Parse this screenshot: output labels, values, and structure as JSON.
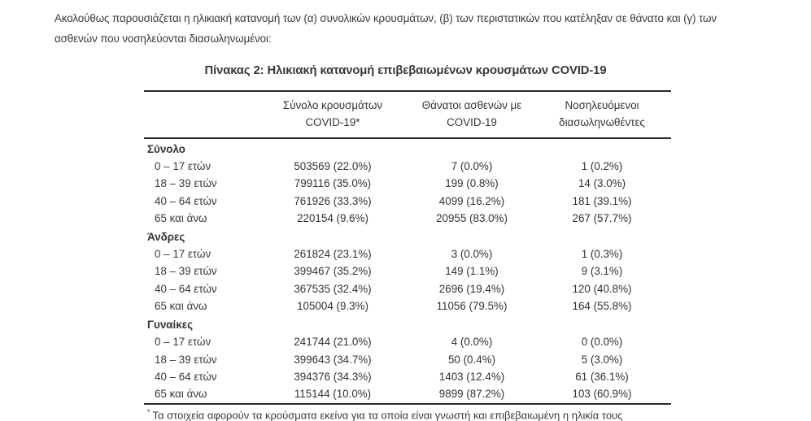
{
  "page": {
    "intro": "Ακολούθως παρουσιάζεται η ηλικιακή κατανομή των (α) συνολικών κρουσμάτων, (β) των περιστατικών που κατέληξαν σε θάνατο και (γ) των ασθενών που νοσηλεύονται διασωληνωμένοι:",
    "table_title": "Πίνακας 2: Ηλικιακή κατανομή επιβεβαιωμένων κρουσμάτων COVID-19",
    "footnote_marker": "*",
    "footnote_text": "Τα στοιχεία αφορούν τα κρούσματα εκείνα για τα οποία είναι γνωστή και επιβεβαιωμένη η ηλικία τους"
  },
  "colors": {
    "text": "#3a3a3a",
    "rule": "#2b2b2b",
    "background": "#ffffff"
  },
  "table": {
    "headers": [
      {
        "line1": "",
        "line2": ""
      },
      {
        "line1": "Σύνολο κρουσμάτων",
        "line2": "COVID-19*"
      },
      {
        "line1": "Θάνατοι ασθενών με",
        "line2": "COVID-19"
      },
      {
        "line1": "Νοσηλευόμενοι",
        "line2": "διασωληνωθέντες"
      }
    ],
    "sections": [
      {
        "label": "Σύνολο",
        "rows": [
          {
            "age": "0 – 17 ετών",
            "cases": "503569 (22.0%)",
            "deaths": "7 (0.0%)",
            "intubated": "1 (0.2%)"
          },
          {
            "age": "18 – 39 ετών",
            "cases": "799116 (35.0%)",
            "deaths": "199 (0.8%)",
            "intubated": "14 (3.0%)"
          },
          {
            "age": "40 – 64 ετών",
            "cases": "761926 (33.3%)",
            "deaths": "4099 (16.2%)",
            "intubated": "181 (39.1%)"
          },
          {
            "age": "65 και άνω",
            "cases": "220154 (9.6%)",
            "deaths": "20955 (83.0%)",
            "intubated": "267 (57.7%)"
          }
        ]
      },
      {
        "label": "Άνδρες",
        "rows": [
          {
            "age": "0 – 17 ετών",
            "cases": "261824 (23.1%)",
            "deaths": "3 (0.0%)",
            "intubated": "1 (0.3%)"
          },
          {
            "age": "18 – 39 ετών",
            "cases": "399467 (35.2%)",
            "deaths": "149 (1.1%)",
            "intubated": "9 (3.1%)"
          },
          {
            "age": "40 – 64 ετών",
            "cases": "367535 (32.4%)",
            "deaths": "2696 (19.4%)",
            "intubated": "120 (40.8%)"
          },
          {
            "age": "65 και άνω",
            "cases": "105004 (9.3%)",
            "deaths": "11056 (79.5%)",
            "intubated": "164 (55.8%)"
          }
        ]
      },
      {
        "label": "Γυναίκες",
        "rows": [
          {
            "age": "0 – 17 ετών",
            "cases": "241744 (21.0%)",
            "deaths": "4 (0.0%)",
            "intubated": "0 (0.0%)"
          },
          {
            "age": "18 – 39 ετών",
            "cases": "399643 (34.7%)",
            "deaths": "50 (0.4%)",
            "intubated": "5 (3.0%)"
          },
          {
            "age": "40 – 64 ετών",
            "cases": "394376 (34.3%)",
            "deaths": "1403 (12.4%)",
            "intubated": "61 (36.1%)"
          },
          {
            "age": "65 και άνω",
            "cases": "115144 (10.0%)",
            "deaths": "9899 (87.2%)",
            "intubated": "103 (60.9%)"
          }
        ]
      }
    ]
  }
}
